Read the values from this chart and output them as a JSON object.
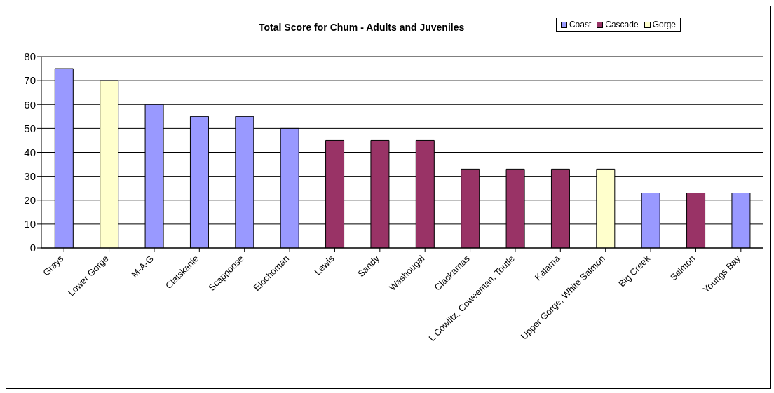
{
  "chart_data": {
    "type": "bar",
    "title": "Total Score for Chum - Adults and Juveniles",
    "categories": [
      "Grays",
      "Lower Gorge",
      "M-A-G",
      "Clatskanie",
      "Scappoose",
      "Elochoman",
      "Lewis",
      "Sandy",
      "Washougal",
      "Clackamas",
      "L Cowlitz, Coweeman, Toutle",
      "Kalama",
      "Upper Gorge, White Salmon",
      "Big Creek",
      "Salmon",
      "Youngs Bay"
    ],
    "series": [
      {
        "name": "Coast",
        "color": "#9999ff",
        "values": [
          75,
          null,
          60,
          55,
          55,
          50,
          null,
          null,
          null,
          null,
          null,
          null,
          null,
          23,
          null,
          23
        ]
      },
      {
        "name": "Cascade",
        "color": "#993366",
        "values": [
          null,
          null,
          null,
          null,
          null,
          null,
          45,
          45,
          45,
          33,
          33,
          33,
          null,
          null,
          23,
          null
        ]
      },
      {
        "name": "Gorge",
        "color": "#ffffcc",
        "values": [
          null,
          70,
          null,
          null,
          null,
          null,
          null,
          null,
          null,
          null,
          null,
          null,
          33,
          null,
          null,
          null
        ]
      }
    ],
    "stacked": true,
    "ylim": [
      0,
      80
    ],
    "yticks": [
      0,
      10,
      20,
      30,
      40,
      50,
      60,
      70,
      80
    ],
    "grid": "y",
    "legend": "top right"
  }
}
